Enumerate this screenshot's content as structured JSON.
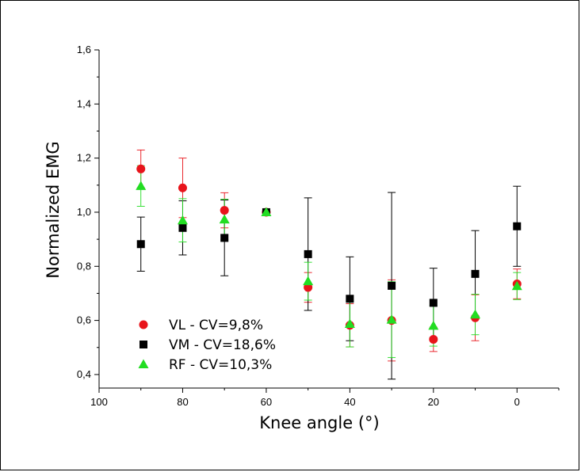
{
  "chart_data": {
    "type": "scatter",
    "title": "",
    "xlabel": "Knee angle (°)",
    "ylabel": "Normalized EMG",
    "xlim": [
      100,
      -10
    ],
    "ylim": [
      0.35,
      1.6
    ],
    "x_reversed": true,
    "grid": false,
    "legend_position": "bottom-left",
    "x_ticks": [
      {
        "value": 100,
        "label": "100"
      },
      {
        "value": 80,
        "label": "80"
      },
      {
        "value": 60,
        "label": "60"
      },
      {
        "value": 40,
        "label": "40"
      },
      {
        "value": 20,
        "label": "20"
      },
      {
        "value": 0,
        "label": "0"
      }
    ],
    "y_ticks": [
      {
        "value": 0.4,
        "label": "0,4"
      },
      {
        "value": 0.6,
        "label": "0,6"
      },
      {
        "value": 0.8,
        "label": "0,8"
      },
      {
        "value": 1.0,
        "label": "1,0"
      },
      {
        "value": 1.2,
        "label": "1,2"
      },
      {
        "value": 1.4,
        "label": "1,4"
      },
      {
        "value": 1.6,
        "label": "1,6"
      }
    ],
    "series": [
      {
        "name": "VL - CV=9,8%",
        "marker": "circle",
        "color": "#e8141b",
        "x": [
          90,
          80,
          70,
          60,
          50,
          40,
          30,
          20,
          10,
          0
        ],
        "y": [
          1.16,
          1.09,
          1.007,
          1.0,
          0.722,
          0.582,
          0.6,
          0.53,
          0.61,
          0.735
        ],
        "err": [
          0.07,
          0.11,
          0.065,
          0.0,
          0.055,
          0.08,
          0.15,
          0.045,
          0.085,
          0.055
        ]
      },
      {
        "name": "VM - CV=18,6%",
        "marker": "square",
        "color": "#000000",
        "x": [
          90,
          80,
          70,
          60,
          50,
          40,
          30,
          20,
          10,
          0
        ],
        "y": [
          0.882,
          0.942,
          0.905,
          1.0,
          0.845,
          0.68,
          0.728,
          0.665,
          0.772,
          0.948
        ],
        "err": [
          0.1,
          0.1,
          0.14,
          0.0,
          0.208,
          0.155,
          0.345,
          0.128,
          0.16,
          0.148
        ]
      },
      {
        "name": "RF - CV=10,3%",
        "marker": "triangle",
        "color": "#22dd22",
        "x": [
          90,
          80,
          70,
          60,
          50,
          40,
          30,
          20,
          10,
          0
        ],
        "y": [
          1.097,
          0.97,
          0.973,
          1.0,
          0.745,
          0.587,
          0.603,
          0.58,
          0.622,
          0.727
        ],
        "err": [
          0.075,
          0.08,
          0.075,
          0.0,
          0.07,
          0.085,
          0.14,
          0.075,
          0.075,
          0.05
        ]
      }
    ]
  }
}
